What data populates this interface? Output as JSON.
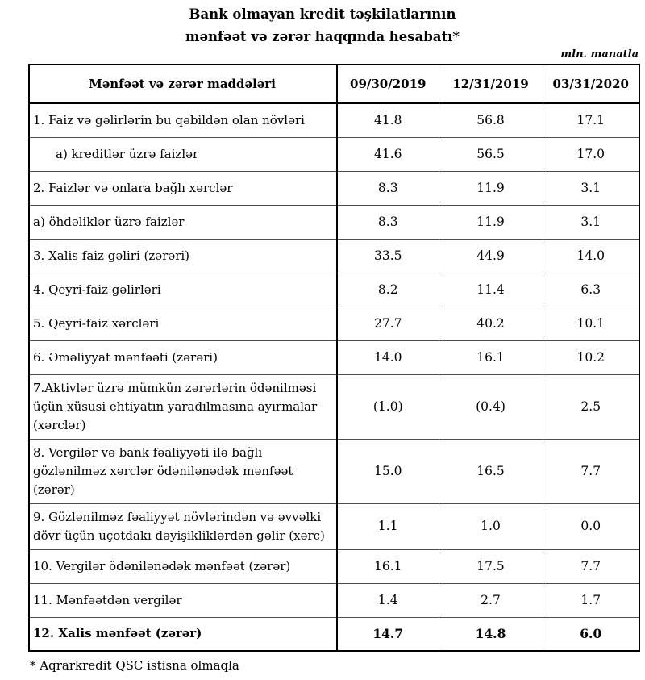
{
  "title": {
    "line1": "Bank olmayan kredit təşkilatlarının",
    "line2": "mənfəət və zərər haqqında hesabatı*"
  },
  "unit_note": "mln. manatla",
  "table": {
    "columns": [
      "Mənfəət və zərər maddələri",
      "09/30/2019",
      "12/31/2019",
      "03/31/2020"
    ],
    "rows": [
      {
        "label": "1. Faiz və gəlirlərin bu qəbildən olan növləri",
        "values": [
          "41.8",
          "56.8",
          "17.1"
        ],
        "indent": false,
        "bold": false
      },
      {
        "label": "a) kreditlər üzrə faizlər",
        "values": [
          "41.6",
          "56.5",
          "17.0"
        ],
        "indent": true,
        "bold": false
      },
      {
        "label": "2. Faizlər və onlara bağlı xərclər",
        "values": [
          "8.3",
          "11.9",
          "3.1"
        ],
        "indent": false,
        "bold": false
      },
      {
        "label": "a) öhdəliklər üzrə faizlər",
        "values": [
          "8.3",
          "11.9",
          "3.1"
        ],
        "indent": false,
        "bold": false
      },
      {
        "label": "3. Xalis faiz gəliri (zərəri)",
        "values": [
          "33.5",
          "44.9",
          "14.0"
        ],
        "indent": false,
        "bold": false
      },
      {
        "label": "4. Qeyri-faiz gəlirləri",
        "values": [
          "8.2",
          "11.4",
          "6.3"
        ],
        "indent": false,
        "bold": false
      },
      {
        "label": "5. Qeyri-faiz xərcləri",
        "values": [
          "27.7",
          "40.2",
          "10.1"
        ],
        "indent": false,
        "bold": false
      },
      {
        "label": "6. Əməliyyat mənfəəti (zərəri)",
        "values": [
          "14.0",
          "16.1",
          "10.2"
        ],
        "indent": false,
        "bold": false
      },
      {
        "label": "7.Aktivlər üzrə mümkün zərərlərin ödənilməsi üçün xüsusi ehtiyatın yaradılmasına ayırmalar (xərclər)",
        "values": [
          "(1.0)",
          "(0.4)",
          "2.5"
        ],
        "indent": false,
        "bold": false
      },
      {
        "label": "8. Vergilər və bank fəaliyyəti ilə bağlı gözlənilməz xərclər ödənilənədək mənfəət (zərər)",
        "values": [
          "15.0",
          "16.5",
          "7.7"
        ],
        "indent": false,
        "bold": false
      },
      {
        "label": "9. Gözlənilməz fəaliyyət növlərindən və əvvəlki dövr üçün uçotdakı dəyişikliklərdən gəlir (xərc)",
        "values": [
          "1.1",
          "1.0",
          "0.0"
        ],
        "indent": false,
        "bold": false
      },
      {
        "label": "10. Vergilər ödənilənədək mənfəət (zərər)",
        "values": [
          "16.1",
          "17.5",
          "7.7"
        ],
        "indent": false,
        "bold": false
      },
      {
        "label": "11. Mənfəətdən vergilər",
        "values": [
          "1.4",
          "2.7",
          "1.7"
        ],
        "indent": false,
        "bold": false
      },
      {
        "label": "12. Xalis mənfəət (zərər)",
        "values": [
          "14.7",
          "14.8",
          "6.0"
        ],
        "indent": false,
        "bold": true
      }
    ]
  },
  "footnote": "* Aqrarkredit QSC istisna olmaqla"
}
